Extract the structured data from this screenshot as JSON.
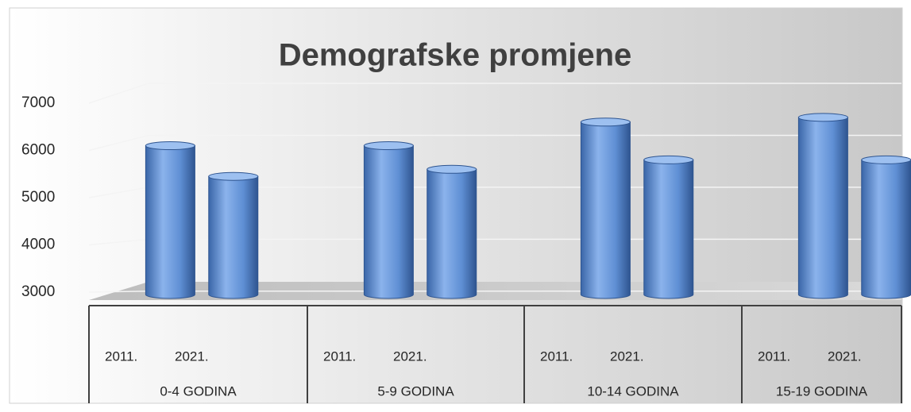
{
  "chart_data": {
    "type": "cylinder-bar",
    "title": "Demografske promjene",
    "categories": [
      "0-4 GODINA",
      "5-9 GODINA",
      "10-14 GODINA",
      "15-19 GODINA"
    ],
    "series": [
      {
        "name": "2011.",
        "color": "#4f81bd",
        "values": [
          6100,
          6100,
          6600,
          6700
        ]
      },
      {
        "name": "2021.",
        "color": "#4f81bd",
        "values": [
          5450,
          5600,
          5800,
          5800
        ]
      }
    ],
    "ylim": [
      3000,
      7000
    ],
    "yticks": [
      3000,
      4000,
      5000,
      6000,
      7000
    ],
    "grid": true
  }
}
